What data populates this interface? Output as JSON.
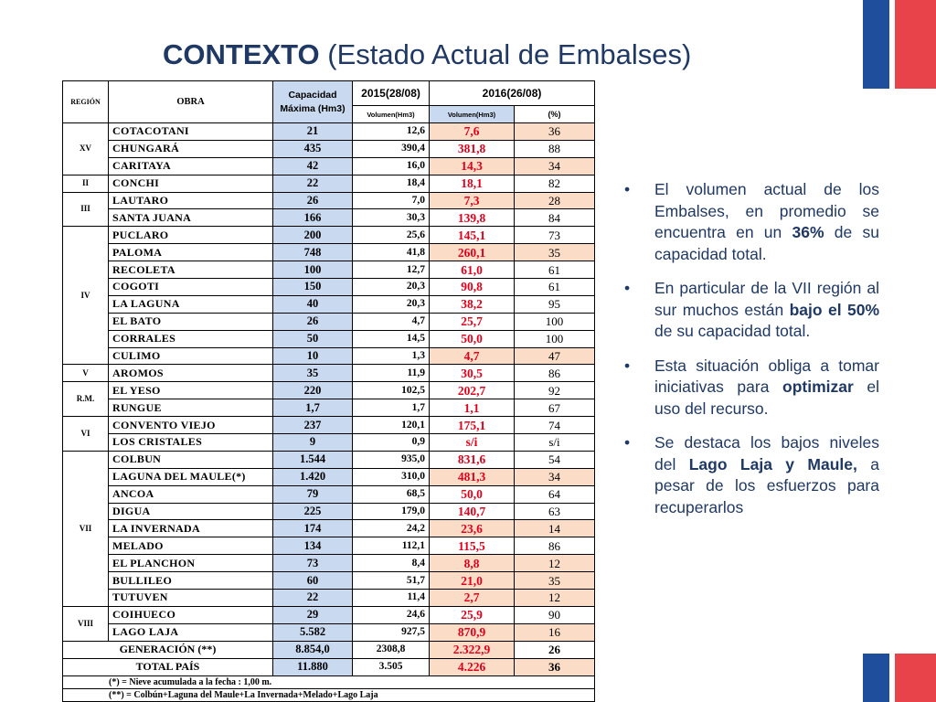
{
  "title": {
    "bold": "CONTEXTO",
    "rest": "(Estado Actual de Embalses)"
  },
  "colors": {
    "title": "#1f3864",
    "header_blue": "#c9d9ef",
    "highlight": "#fbdcc7",
    "red_value": "#e0001b",
    "flag_blue": "#1f4e9c",
    "flag_red": "#e8434a"
  },
  "icons": {
    "bullet": "•"
  },
  "table": {
    "headers": {
      "region": "REGIÓN",
      "obra": "OBRA",
      "capacidad_line1": "Capacidad",
      "capacidad_line2": "Máxima (Hm3)",
      "y2015": "2015(28/08)",
      "y2016": "2016(26/08)",
      "vol2015": "Volumen(Hm3)",
      "vol2016": "Volumen(Hm3)",
      "pct": "(%)"
    },
    "regions": [
      {
        "name": "XV",
        "rows": [
          {
            "obra": "COTACOTANI",
            "cap": "21",
            "v2015": "12,6",
            "v2016": "7,6",
            "pct": "36",
            "warm": true
          },
          {
            "obra": "CHUNGARÁ",
            "cap": "435",
            "v2015": "390,4",
            "v2016": "381,8",
            "pct": "88",
            "warm": false
          },
          {
            "obra": "CARITAYA",
            "cap": "42",
            "v2015": "16,0",
            "v2016": "14,3",
            "pct": "34",
            "warm": true
          }
        ]
      },
      {
        "name": "II",
        "rows": [
          {
            "obra": "CONCHI",
            "cap": "22",
            "v2015": "18,4",
            "v2016": "18,1",
            "pct": "82",
            "warm": false
          }
        ]
      },
      {
        "name": "III",
        "rows": [
          {
            "obra": "LAUTARO",
            "cap": "26",
            "v2015": "7,0",
            "v2016": "7,3",
            "pct": "28",
            "warm": true
          },
          {
            "obra": "SANTA JUANA",
            "cap": "166",
            "v2015": "30,3",
            "v2016": "139,8",
            "pct": "84",
            "warm": false
          }
        ]
      },
      {
        "name": "IV",
        "rows": [
          {
            "obra": "PUCLARO",
            "cap": "200",
            "v2015": "25,6",
            "v2016": "145,1",
            "pct": "73",
            "warm": false
          },
          {
            "obra": "PALOMA",
            "cap": "748",
            "v2015": "41,8",
            "v2016": "260,1",
            "pct": "35",
            "warm": true
          },
          {
            "obra": "RECOLETA",
            "cap": "100",
            "v2015": "12,7",
            "v2016": "61,0",
            "pct": "61",
            "warm": false
          },
          {
            "obra": "COGOTI",
            "cap": "150",
            "v2015": "20,3",
            "v2016": "90,8",
            "pct": "61",
            "warm": false
          },
          {
            "obra": "LA LAGUNA",
            "cap": "40",
            "v2015": "20,3",
            "v2016": "38,2",
            "pct": "95",
            "warm": false
          },
          {
            "obra": "EL BATO",
            "cap": "26",
            "v2015": "4,7",
            "v2016": "25,7",
            "pct": "100",
            "warm": false
          },
          {
            "obra": "CORRALES",
            "cap": "50",
            "v2015": "14,5",
            "v2016": "50,0",
            "pct": "100",
            "warm": false
          },
          {
            "obra": "CULIMO",
            "cap": "10",
            "v2015": "1,3",
            "v2016": "4,7",
            "pct": "47",
            "warm": true
          }
        ]
      },
      {
        "name": "V",
        "rows": [
          {
            "obra": "AROMOS",
            "cap": "35",
            "v2015": "11,9",
            "v2016": "30,5",
            "pct": "86",
            "warm": false
          }
        ]
      },
      {
        "name": "R.M.",
        "rows": [
          {
            "obra": "EL YESO",
            "cap": "220",
            "v2015": "102,5",
            "v2016": "202,7",
            "pct": "92",
            "warm": false
          },
          {
            "obra": "RUNGUE",
            "cap": "1,7",
            "v2015": "1,7",
            "v2016": "1,1",
            "pct": "67",
            "warm": false
          }
        ]
      },
      {
        "name": "VI",
        "rows": [
          {
            "obra": "CONVENTO VIEJO",
            "cap": "237",
            "v2015": "120,1",
            "v2016": "175,1",
            "pct": "74",
            "warm": false
          },
          {
            "obra": "LOS CRISTALES",
            "cap": "9",
            "v2015": "0,9",
            "v2016": "s/i",
            "pct": "s/i",
            "warm": false
          }
        ]
      },
      {
        "name": "VII",
        "rows": [
          {
            "obra": "COLBUN",
            "cap": "1.544",
            "v2015": "935,0",
            "v2016": "831,6",
            "pct": "54",
            "warm": false
          },
          {
            "obra": "LAGUNA DEL MAULE(*)",
            "cap": "1.420",
            "v2015": "310,0",
            "v2016": "481,3",
            "pct": "34",
            "warm": true
          },
          {
            "obra": "ANCOA",
            "cap": "79",
            "v2015": "68,5",
            "v2016": "50,0",
            "pct": "64",
            "warm": false
          },
          {
            "obra": "DIGUA",
            "cap": "225",
            "v2015": "179,0",
            "v2016": "140,7",
            "pct": "63",
            "warm": false
          },
          {
            "obra": "LA INVERNADA",
            "cap": "174",
            "v2015": "24,2",
            "v2016": "23,6",
            "pct": "14",
            "warm": true
          },
          {
            "obra": "MELADO",
            "cap": "134",
            "v2015": "112,1",
            "v2016": "115,5",
            "pct": "86",
            "warm": false
          },
          {
            "obra": "EL PLANCHON",
            "cap": "73",
            "v2015": "8,4",
            "v2016": "8,8",
            "pct": "12",
            "warm": true
          },
          {
            "obra": "BULLILEO",
            "cap": "60",
            "v2015": "51,7",
            "v2016": "21,0",
            "pct": "35",
            "warm": true
          },
          {
            "obra": "TUTUVEN",
            "cap": "22",
            "v2015": "11,4",
            "v2016": "2,7",
            "pct": "12",
            "warm": true
          }
        ]
      },
      {
        "name": "VIII",
        "rows": [
          {
            "obra": "COIHUECO",
            "cap": "29",
            "v2015": "24,6",
            "v2016": "25,9",
            "pct": "90",
            "warm": false
          },
          {
            "obra": "LAGO LAJA",
            "cap": "5.582",
            "v2015": "927,5",
            "v2016": "870,9",
            "pct": "16",
            "warm": true
          }
        ]
      }
    ],
    "generacion": {
      "label": "GENERACIÓN (**)",
      "cap": "8.854,0",
      "v2015": "2308,8",
      "v2016": "2.322,9",
      "pct": "26"
    },
    "total": {
      "label": "TOTAL PAÍS",
      "cap": "11.880",
      "v2015": "3.505",
      "v2016": "4.226",
      "pct": "36"
    },
    "notes": [
      "(*) = Nieve acumulada a la fecha : 1,00 m.",
      "(**) = Colbún+Laguna del Maule+La Invernada+Melado+Lago Laja"
    ]
  },
  "bullets": [
    [
      {
        "t": "El volumen actual de los Embalses, en promedio se encuentra en un "
      },
      {
        "t": "36%",
        "b": true
      },
      {
        "t": " de su capacidad total."
      }
    ],
    [
      {
        "t": "En particular de la VII región al sur muchos están "
      },
      {
        "t": "bajo el 50%",
        "b": true
      },
      {
        "t": " de su capacidad total."
      }
    ],
    [
      {
        "t": "Esta situación obliga a tomar iniciativas para "
      },
      {
        "t": "optimizar",
        "b": true
      },
      {
        "t": " el uso del recurso."
      }
    ],
    [
      {
        "t": "Se destaca los bajos niveles del "
      },
      {
        "t": "Lago Laja y Maule,",
        "b": true
      },
      {
        "t": " a pesar de los esfuerzos para recuperarlos"
      }
    ]
  ]
}
